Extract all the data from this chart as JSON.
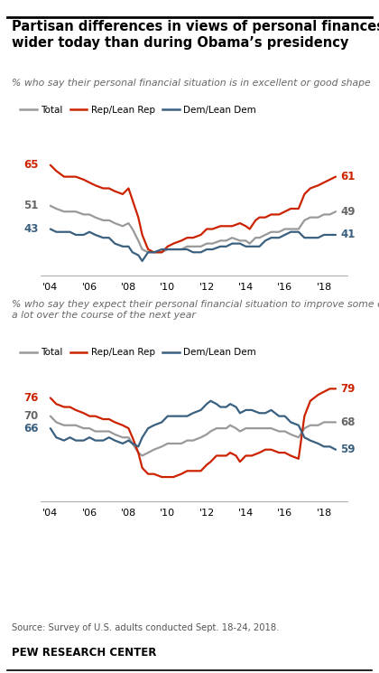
{
  "title": "Partisan differences in views of personal finances\nwider today than during Obama’s presidency",
  "subtitle1": "% who say their personal financial situation is in excellent or good shape",
  "subtitle2": "% who say they expect their personal financial situation to improve some or\na lot over the course of the next year",
  "source": "Source: Survey of U.S. adults conducted Sept. 18-24, 2018.",
  "branding": "PEW RESEARCH CENTER",
  "colors": {
    "total": "#999999",
    "rep": "#cc2200",
    "dem": "#3a6080"
  },
  "legend_labels": [
    "Total",
    "Rep/Lean Rep",
    "Dem/Lean Dem"
  ],
  "chart1": {
    "years": [
      2004.0,
      2004.3,
      2004.7,
      2005.0,
      2005.3,
      2005.7,
      2006.0,
      2006.3,
      2006.7,
      2007.0,
      2007.3,
      2007.7,
      2008.0,
      2008.2,
      2008.5,
      2008.7,
      2009.0,
      2009.3,
      2009.7,
      2010.0,
      2010.3,
      2010.7,
      2011.0,
      2011.3,
      2011.7,
      2012.0,
      2012.3,
      2012.7,
      2013.0,
      2013.3,
      2013.7,
      2014.0,
      2014.2,
      2014.5,
      2014.7,
      2015.0,
      2015.3,
      2015.7,
      2016.0,
      2016.3,
      2016.7,
      2017.0,
      2017.3,
      2017.7,
      2018.0,
      2018.3,
      2018.6
    ],
    "total": [
      51,
      50,
      49,
      49,
      49,
      48,
      48,
      47,
      46,
      46,
      45,
      44,
      45,
      43,
      39,
      36,
      35,
      35,
      35,
      36,
      36,
      36,
      37,
      37,
      37,
      38,
      38,
      39,
      39,
      40,
      39,
      39,
      38,
      40,
      40,
      41,
      42,
      42,
      43,
      43,
      43,
      46,
      47,
      47,
      48,
      48,
      49
    ],
    "rep": [
      65,
      63,
      61,
      61,
      61,
      60,
      59,
      58,
      57,
      57,
      56,
      55,
      57,
      53,
      47,
      41,
      36,
      35,
      35,
      37,
      38,
      39,
      40,
      40,
      41,
      43,
      43,
      44,
      44,
      44,
      45,
      44,
      43,
      46,
      47,
      47,
      48,
      48,
      49,
      50,
      50,
      55,
      57,
      58,
      59,
      60,
      61
    ],
    "dem": [
      43,
      42,
      42,
      42,
      41,
      41,
      42,
      41,
      40,
      40,
      38,
      37,
      37,
      35,
      34,
      32,
      35,
      35,
      36,
      36,
      36,
      36,
      36,
      35,
      35,
      36,
      36,
      37,
      37,
      38,
      38,
      37,
      37,
      37,
      37,
      39,
      40,
      40,
      41,
      42,
      42,
      40,
      40,
      40,
      41,
      41,
      41
    ],
    "start_labels": {
      "rep": 65,
      "total": 51,
      "dem": 43
    },
    "end_labels": {
      "rep": 61,
      "total": 49,
      "dem": 41
    },
    "ylim": [
      27,
      73
    ]
  },
  "chart2": {
    "years": [
      2004.0,
      2004.3,
      2004.7,
      2005.0,
      2005.3,
      2005.7,
      2006.0,
      2006.3,
      2006.7,
      2007.0,
      2007.3,
      2007.7,
      2008.0,
      2008.2,
      2008.5,
      2008.7,
      2009.0,
      2009.3,
      2009.7,
      2010.0,
      2010.3,
      2010.7,
      2011.0,
      2011.3,
      2011.7,
      2012.0,
      2012.2,
      2012.5,
      2012.7,
      2013.0,
      2013.2,
      2013.5,
      2013.7,
      2014.0,
      2014.3,
      2014.7,
      2015.0,
      2015.3,
      2015.7,
      2016.0,
      2016.3,
      2016.7,
      2017.0,
      2017.3,
      2017.7,
      2018.0,
      2018.3,
      2018.6
    ],
    "total": [
      70,
      68,
      67,
      67,
      67,
      66,
      66,
      65,
      65,
      65,
      64,
      63,
      63,
      61,
      58,
      57,
      58,
      59,
      60,
      61,
      61,
      61,
      62,
      62,
      63,
      64,
      65,
      66,
      66,
      66,
      67,
      66,
      65,
      66,
      66,
      66,
      66,
      66,
      65,
      65,
      64,
      63,
      66,
      67,
      67,
      68,
      68,
      68
    ],
    "rep": [
      76,
      74,
      73,
      73,
      72,
      71,
      70,
      70,
      69,
      69,
      68,
      67,
      66,
      63,
      58,
      53,
      51,
      51,
      50,
      50,
      50,
      51,
      52,
      52,
      52,
      54,
      55,
      57,
      57,
      57,
      58,
      57,
      55,
      57,
      57,
      58,
      59,
      59,
      58,
      58,
      57,
      56,
      70,
      75,
      77,
      78,
      79,
      79
    ],
    "dem": [
      66,
      63,
      62,
      63,
      62,
      62,
      63,
      62,
      62,
      63,
      62,
      61,
      62,
      61,
      60,
      63,
      66,
      67,
      68,
      70,
      70,
      70,
      70,
      71,
      72,
      74,
      75,
      74,
      73,
      73,
      74,
      73,
      71,
      72,
      72,
      71,
      71,
      72,
      70,
      70,
      68,
      67,
      63,
      62,
      61,
      60,
      60,
      59
    ],
    "start_labels": {
      "rep": 76,
      "total": 70,
      "dem": 66
    },
    "end_labels": {
      "rep": 79,
      "total": 68,
      "dem": 59
    },
    "ylim": [
      42,
      88
    ]
  },
  "xticks": [
    2004,
    2006,
    2008,
    2010,
    2012,
    2014,
    2016,
    2018
  ],
  "xtick_labels": [
    "'04",
    "'06",
    "'08",
    "'10",
    "'12",
    "'14",
    "'16",
    "'18"
  ]
}
